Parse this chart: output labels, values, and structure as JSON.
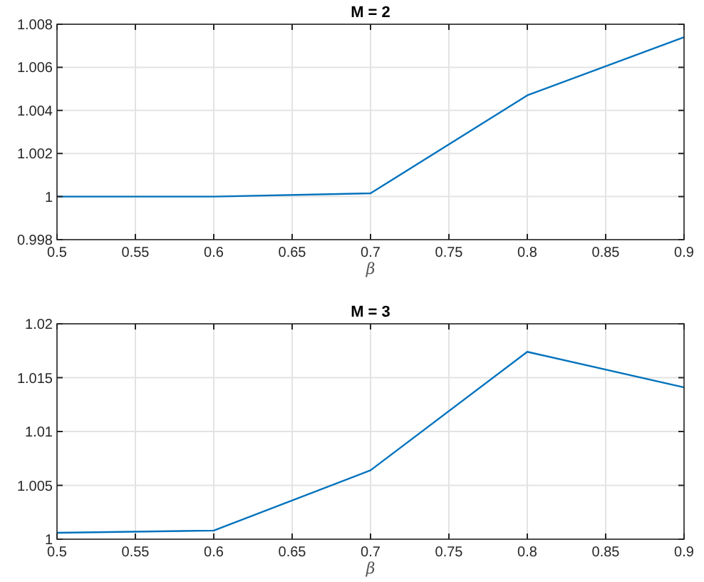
{
  "chart_data": [
    {
      "type": "line",
      "title": "M = 2",
      "xlabel": "β",
      "x": [
        0.5,
        0.6,
        0.7,
        0.8,
        0.9
      ],
      "series": [
        {
          "color": "#0072bd",
          "values": [
            1.0,
            1.0,
            1.00015,
            1.0047,
            1.0074
          ]
        }
      ],
      "xlim": [
        0.5,
        0.9
      ],
      "xticks": [
        0.5,
        0.55,
        0.6,
        0.65,
        0.7,
        0.75,
        0.8,
        0.85,
        0.9
      ],
      "ylim": [
        0.998,
        1.008
      ],
      "yticks": [
        0.998,
        1,
        1.002,
        1.004,
        1.006,
        1.008
      ],
      "grid": true
    },
    {
      "type": "line",
      "title": "M = 3",
      "xlabel": "β",
      "x": [
        0.5,
        0.6,
        0.7,
        0.8,
        0.9
      ],
      "series": [
        {
          "color": "#0072bd",
          "values": [
            1.0006,
            1.0008,
            1.0064,
            1.0174,
            1.0141
          ]
        }
      ],
      "xlim": [
        0.5,
        0.9
      ],
      "xticks": [
        0.5,
        0.55,
        0.6,
        0.65,
        0.7,
        0.75,
        0.8,
        0.85,
        0.9
      ],
      "ylim": [
        1,
        1.02
      ],
      "yticks": [
        1,
        1.005,
        1.01,
        1.015,
        1.02
      ],
      "grid": true
    }
  ]
}
